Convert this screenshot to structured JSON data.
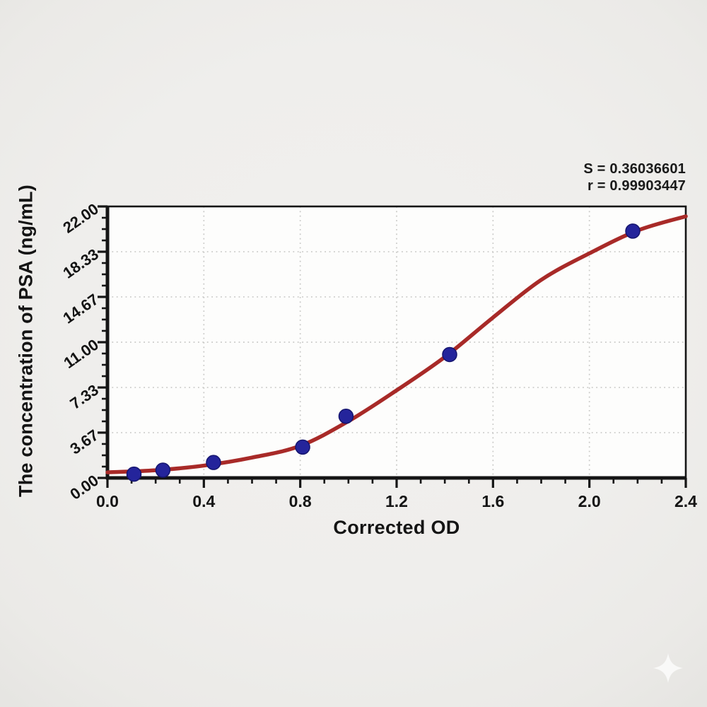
{
  "chart_data": {
    "type": "scatter",
    "title": "",
    "xlabel": "Corrected OD",
    "ylabel": "The concentration of PSA (ng/mL)",
    "xlim": [
      0.0,
      2.4
    ],
    "ylim": [
      0.0,
      22.0
    ],
    "x_major_ticks": [
      0.0,
      0.4,
      0.8,
      1.2,
      1.6,
      2.0,
      2.4
    ],
    "x_tick_labels": [
      "0.0",
      "0.4",
      "0.8",
      "1.2",
      "1.6",
      "2.0",
      "2.4"
    ],
    "x_minor_step": 0.1,
    "y_major_ticks": [
      0.0,
      3.67,
      7.33,
      11.0,
      14.67,
      18.33,
      22.0
    ],
    "y_tick_labels": [
      "0.00",
      "3.67",
      "7.33",
      "11.00",
      "14.67",
      "18.33",
      "22.00"
    ],
    "y_minor_per_interval": 3,
    "grid": {
      "visible": true,
      "style": "dotted",
      "color": "#c9c9c7",
      "legend": "none"
    },
    "annotations": [
      "S = 0.36036601",
      "r = 0.99903447"
    ],
    "series": [
      {
        "name": "standard-points",
        "type": "scatter",
        "marker": "circle",
        "marker_color": "#24249b",
        "marker_edge_color": "#15156e",
        "x": [
          0.11,
          0.23,
          0.44,
          0.81,
          0.99,
          1.42,
          2.18
        ],
        "y": [
          0.31,
          0.63,
          1.25,
          2.5,
          5.0,
          10.0,
          20.0
        ]
      },
      {
        "name": "fit-curve",
        "type": "line",
        "line_color": "#a82a28",
        "x": [
          0.0,
          0.2,
          0.4,
          0.6,
          0.8,
          1.0,
          1.2,
          1.4,
          1.6,
          1.8,
          2.0,
          2.2,
          2.4
        ],
        "y": [
          0.45,
          0.62,
          1.0,
          1.65,
          2.6,
          4.6,
          7.1,
          9.8,
          13.0,
          16.05,
          18.2,
          20.05,
          21.2
        ]
      }
    ],
    "colors": {
      "axis": "#151515",
      "plot_background": "#fdfdfc",
      "page_background": "#efeeec",
      "curve": "#a82a28",
      "points": "#24249b"
    }
  },
  "decorations": {
    "watermark_icon": "four-point-star"
  }
}
